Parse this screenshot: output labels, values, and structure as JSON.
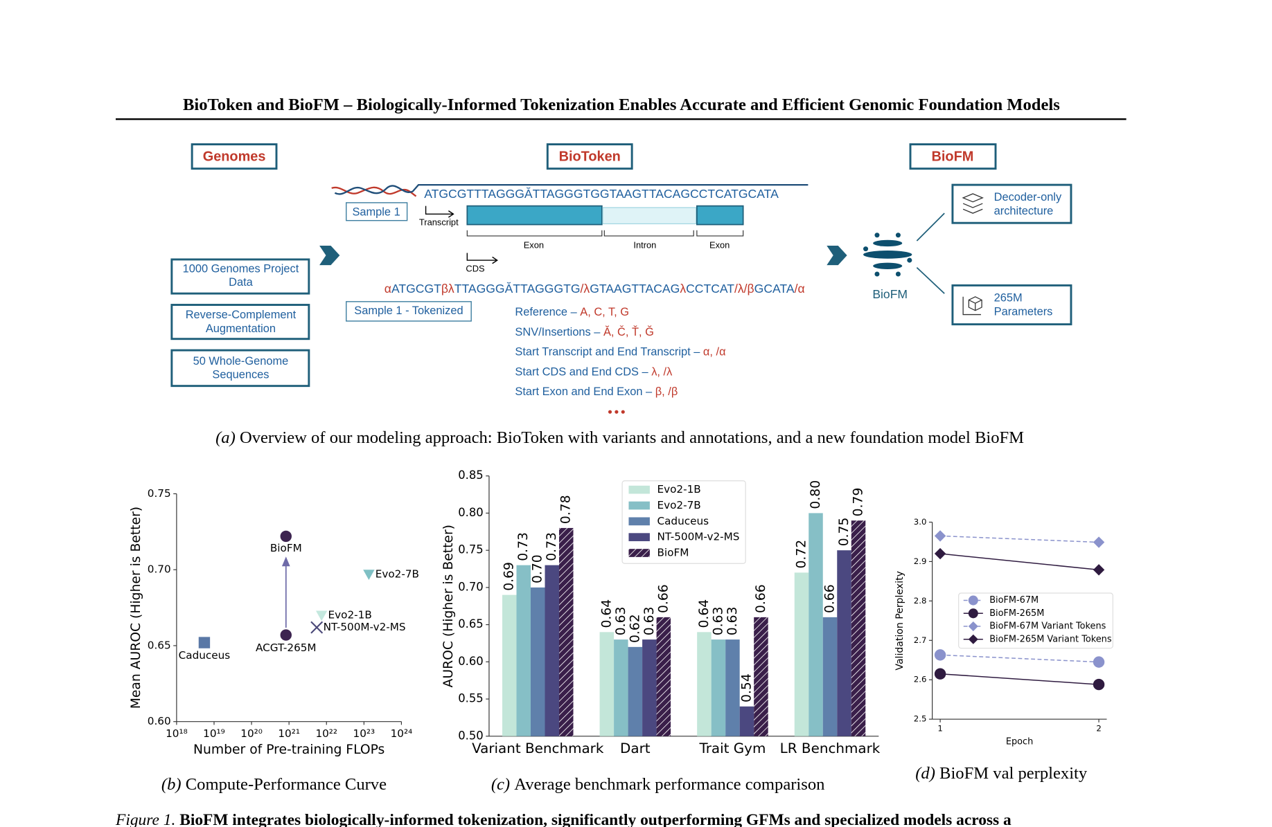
{
  "header": {
    "title": "BioToken and BioFM – Biologically-Informed Tokenization Enables Accurate and Efficient Genomic Foundation Models"
  },
  "diagram": {
    "genomes_title": "Genomes",
    "biotoken_title": "BioToken",
    "biofm_title": "BioFM",
    "sources": [
      [
        "1000 Genomes Project",
        "Data"
      ],
      [
        "Reverse-Complement",
        "Augmentation"
      ],
      [
        "50 Whole-Genome",
        "Sequences"
      ]
    ],
    "sequence": "ATGCGTTTAGGGĂTTAGGGTGGTAAGTTACAGCCTCATGCATA",
    "sample": "Sample 1",
    "transcript": "Transcript",
    "exon_1": "Exon",
    "intron": "Intron",
    "exon_2": "Exon",
    "cds": "CDS",
    "tokenized_sequence": "αATGCGTβλTTAGGGĂTTAGGGTG/λGTAAGTTACAGλCCTCAT/λ/βGCATA/α",
    "sample_tokenized": "Sample 1 - Tokenized",
    "token_legend": [
      {
        "label": "Reference –",
        "tokens": "A, C, T, G"
      },
      {
        "label": "SNV/Insertions –",
        "tokens": "Ă, Č, Ť, Ğ"
      },
      {
        "label": "Start Transcript and End Transcript –",
        "tokens": "α, /α"
      },
      {
        "label": "Start CDS and End CDS –",
        "tokens": "λ, /λ"
      },
      {
        "label": "Start Exon and End Exon –",
        "tokens": "β, /β"
      }
    ],
    "model_label": "BioFM",
    "features": [
      [
        "Decoder-only",
        "architecture"
      ],
      [
        "265M",
        "Parameters"
      ]
    ]
  },
  "captions": [
    {
      "label": "(a)",
      "text": "Overview of our modeling approach: BioToken with variants and annotations, and a new foundation model BioFM"
    },
    {
      "label": "(b)",
      "text": "Compute-Performance Curve"
    },
    {
      "label": "(c)",
      "text": "Average benchmark performance comparison"
    },
    {
      "label": "(d)",
      "text": "BioFM val perplexity"
    }
  ],
  "chart_data": [
    {
      "type": "scatter",
      "xscale": "log",
      "xlabel": "Number of Pre-training FLOPs",
      "ylabel": "Mean AUROC (Higher is Better)",
      "xlim": [
        1e+18,
        1e+24
      ],
      "xticks": [
        {
          "value": 1e+18,
          "label": "10¹⁸"
        },
        {
          "value": 1e+19,
          "label": "10¹⁹"
        },
        {
          "value": 1e+20,
          "label": "10²⁰"
        },
        {
          "value": 1e+21,
          "label": "10²¹"
        },
        {
          "value": 1e+22,
          "label": "10²²"
        },
        {
          "value": 1e+23,
          "label": "10²³"
        },
        {
          "value": 1e+24,
          "label": "10²⁴"
        }
      ],
      "ylim": [
        0.6,
        0.75
      ],
      "yticks": [
        {
          "value": 0.6,
          "label": "0.60"
        },
        {
          "value": 0.65,
          "label": "0.65"
        },
        {
          "value": 0.7,
          "label": "0.70"
        },
        {
          "value": 0.75,
          "label": "0.75"
        }
      ],
      "points": [
        {
          "name": "BioFM",
          "x": 8.3e+20,
          "y": 0.722,
          "marker": "circle",
          "color": "#3d2450"
        },
        {
          "name": "ACGT-265M",
          "x": 8.3e+20,
          "y": 0.657,
          "marker": "circle",
          "color": "#3d2450"
        },
        {
          "name": "Caduceus",
          "x": 5.5e+18,
          "y": 0.652,
          "marker": "square",
          "color": "#5a78a6"
        },
        {
          "name": "Evo2-7B",
          "x": 1.35e+23,
          "y": 0.697,
          "marker": "triangle_down",
          "color": "#7fc0c4"
        },
        {
          "name": "Evo2-1B",
          "x": 7.4e+21,
          "y": 0.67,
          "marker": "triangle_down",
          "color": "#c4e8de"
        },
        {
          "name": "NT-500M-v2-MS",
          "x": 5.5e+21,
          "y": 0.662,
          "marker": "x",
          "color": "#4a4878"
        }
      ]
    },
    {
      "type": "bar",
      "ylabel": "AUROC (Higher is Better)",
      "categories": [
        "Variant Benchmark",
        "Dart",
        "Trait Gym",
        "LR Benchmark"
      ],
      "ylim": [
        0.5,
        0.85
      ],
      "yticks": [
        {
          "value": 0.5,
          "label": "0.50"
        },
        {
          "value": 0.55,
          "label": "0.55"
        },
        {
          "value": 0.6,
          "label": "0.60"
        },
        {
          "value": 0.65,
          "label": "0.65"
        },
        {
          "value": 0.7,
          "label": "0.70"
        },
        {
          "value": 0.75,
          "label": "0.75"
        },
        {
          "value": 0.8,
          "label": "0.80"
        },
        {
          "value": 0.85,
          "label": "0.85"
        }
      ],
      "legend": "upper center",
      "series": [
        {
          "name": "Evo2-1B",
          "color": "#c3e6d9",
          "values": [
            0.69,
            0.64,
            0.64,
            0.72
          ],
          "value_labels": [
            "0.69",
            "0.64",
            "0.64",
            "0.72"
          ]
        },
        {
          "name": "Evo2-7B",
          "color": "#86bfc6",
          "values": [
            0.73,
            0.63,
            0.63,
            0.8
          ],
          "value_labels": [
            "0.73",
            "0.63",
            "0.63",
            "0.80"
          ]
        },
        {
          "name": "Caduceus",
          "color": "#5f80ab",
          "values": [
            0.7,
            0.62,
            0.63,
            0.66
          ],
          "value_labels": [
            "0.70",
            "0.62",
            "0.63",
            "0.66"
          ]
        },
        {
          "name": "NT-500M-v2-MS",
          "color": "#4b4880",
          "values": [
            0.73,
            0.63,
            0.54,
            0.75
          ],
          "value_labels": [
            "0.73",
            "0.63",
            "0.54",
            "0.75"
          ]
        },
        {
          "name": "BioFM",
          "color": "#3a1f4a",
          "hatch": true,
          "values": [
            0.78,
            0.66,
            0.66,
            0.79
          ],
          "value_labels": [
            "0.78",
            "0.66",
            "0.66",
            "0.79"
          ]
        }
      ]
    },
    {
      "type": "line",
      "xlabel": "Epoch",
      "ylabel": "Validation Perplexity",
      "x": [
        1,
        2
      ],
      "xlim": [
        0.95,
        2.05
      ],
      "xticks": [
        1,
        2
      ],
      "ylim": [
        2.5,
        3.0
      ],
      "yticks": [
        2.5,
        2.6,
        2.7,
        2.8,
        2.9,
        {
          "value": 3.0,
          "label": "3.0"
        }
      ],
      "legend": "center",
      "series": [
        {
          "name": "BioFM-67M",
          "color": "#8a92cc",
          "dashed": true,
          "marker": "circle",
          "values": [
            2.663,
            2.645
          ]
        },
        {
          "name": "BioFM-265M",
          "color": "#2f1b40",
          "dashed": false,
          "marker": "circle",
          "values": [
            2.615,
            2.588
          ]
        },
        {
          "name": "BioFM-67M Variant Tokens",
          "color": "#8a92cc",
          "dashed": true,
          "marker": "diamond",
          "values": [
            2.965,
            2.949
          ]
        },
        {
          "name": "BioFM-265M Variant Tokens",
          "color": "#2f1b40",
          "dashed": false,
          "marker": "diamond",
          "values": [
            2.92,
            2.879
          ]
        }
      ]
    }
  ],
  "figure_caption": {
    "label": "Figure 1.",
    "text": "BioFM integrates biologically-informed tokenization, significantly outperforming GFMs and specialized models across a"
  }
}
